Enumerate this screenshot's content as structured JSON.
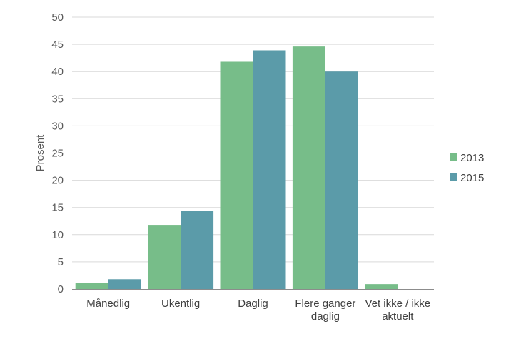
{
  "chart_data": {
    "type": "bar",
    "title": "",
    "xlabel": "",
    "ylabel": "Prosent",
    "ylim": [
      0,
      50
    ],
    "yticks": [
      "0",
      "5",
      "10",
      "15",
      "20",
      "25",
      "30",
      "35",
      "40",
      "45",
      "50"
    ],
    "categories": [
      [
        "Månedlig"
      ],
      [
        "Ukentlig"
      ],
      [
        "Daglig"
      ],
      [
        "Flere ganger",
        "daglig"
      ],
      [
        "Vet ikke / ikke",
        "aktuelt"
      ]
    ],
    "series": [
      {
        "name": "2013",
        "color": "#77bd89",
        "values": [
          1.1,
          11.8,
          41.8,
          44.6,
          0.9
        ]
      },
      {
        "name": "2015",
        "color": "#5b9ba9",
        "values": [
          1.8,
          14.4,
          43.9,
          40.0,
          0
        ]
      }
    ],
    "grid": true,
    "legend": "right"
  }
}
